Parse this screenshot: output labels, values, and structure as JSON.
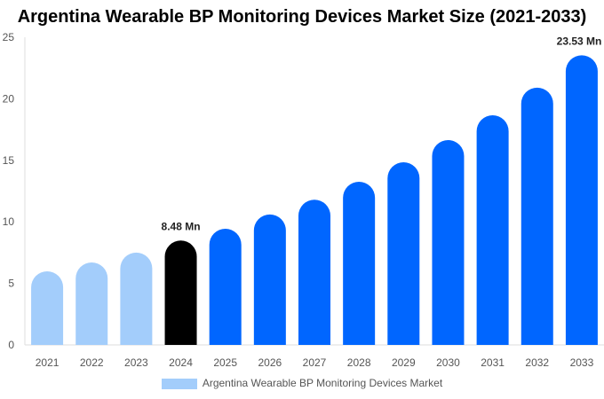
{
  "chart_data": {
    "type": "bar",
    "title": "Argentina Wearable BP Monitoring Devices Market Size (2021-2033)",
    "categories": [
      "2021",
      "2022",
      "2023",
      "2024",
      "2025",
      "2026",
      "2027",
      "2028",
      "2029",
      "2030",
      "2031",
      "2032",
      "2033"
    ],
    "series": [
      {
        "name": "Argentina Wearable BP Monitoring Devices Market",
        "values": [
          5.98,
          6.7,
          7.5,
          8.48,
          9.44,
          10.6,
          11.8,
          13.26,
          14.84,
          16.64,
          18.66,
          20.9,
          23.53
        ]
      }
    ],
    "data_labels": {
      "3": "8.48 Mn",
      "12": "23.53 Mn"
    },
    "ylim": [
      0,
      25
    ],
    "yticks": [
      0,
      5,
      10,
      15,
      20,
      25
    ],
    "grid": false,
    "legend_position": "bottom",
    "colors": {
      "historical": "#a3cdfb",
      "base_year": "#000000",
      "forecast": "#0066ff"
    },
    "color_by_index": [
      "historical",
      "historical",
      "historical",
      "base_year",
      "forecast",
      "forecast",
      "forecast",
      "forecast",
      "forecast",
      "forecast",
      "forecast",
      "forecast",
      "forecast"
    ]
  }
}
